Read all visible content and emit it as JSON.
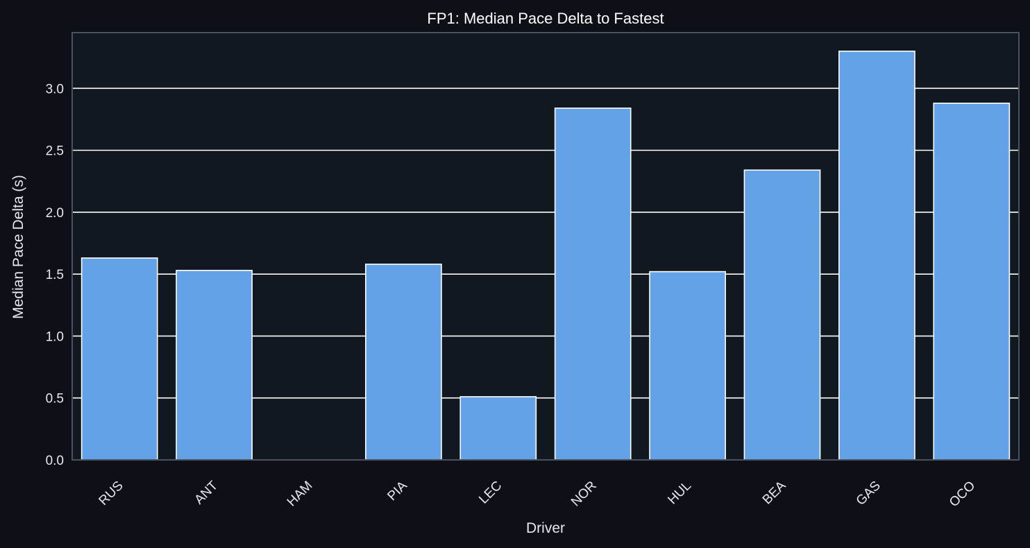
{
  "chart_data": {
    "type": "bar",
    "title": "FP1: Median Pace Delta to Fastest",
    "xlabel": "Driver",
    "ylabel": "Median Pace Delta (s)",
    "categories": [
      "RUS",
      "ANT",
      "HAM",
      "PIA",
      "LEC",
      "NOR",
      "HUL",
      "BEA",
      "GAS",
      "OCO"
    ],
    "values": [
      1.63,
      1.53,
      0.0,
      1.58,
      0.51,
      2.84,
      1.52,
      2.34,
      3.3,
      2.88
    ],
    "ylim": [
      0,
      3.45
    ],
    "yticks": [
      0.0,
      0.5,
      1.0,
      1.5,
      2.0,
      2.5,
      3.0
    ],
    "ytick_labels": [
      "0.0",
      "0.5",
      "1.0",
      "1.5",
      "2.0",
      "2.5",
      "3.0"
    ],
    "grid": "y-major",
    "legend": "none",
    "colors": {
      "background": "#0d1117",
      "plot_background": "#121820",
      "bar_fill": "#64a2e8",
      "bar_edge": "#ffffff",
      "grid": "#ffffff",
      "spine": "#4a5260"
    }
  }
}
